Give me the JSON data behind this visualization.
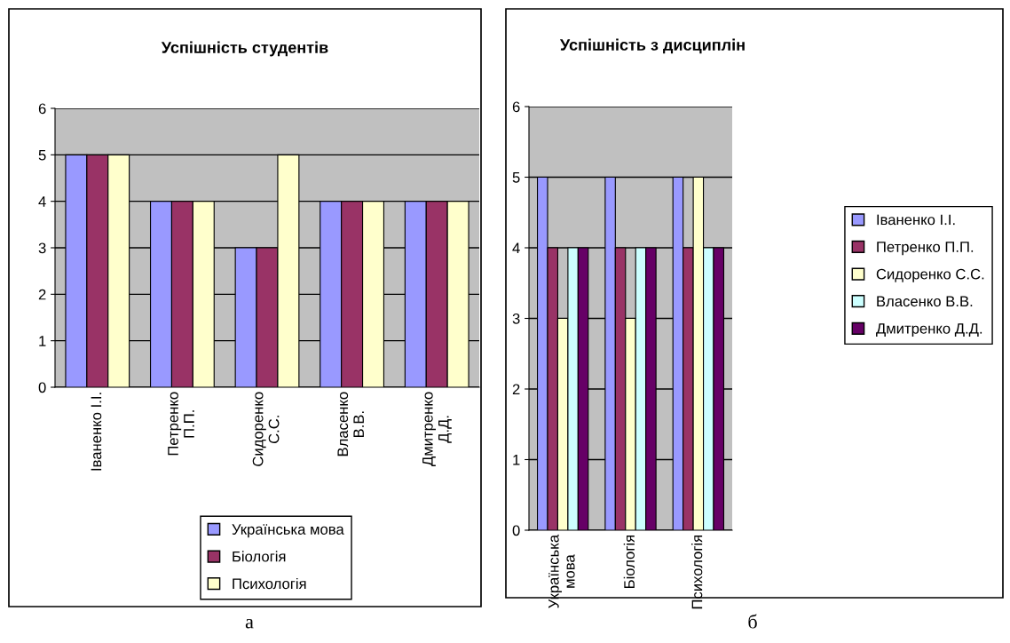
{
  "chart_data": [
    {
      "type": "bar",
      "title": "Успішність студентів",
      "categories": [
        "Іваненко І.І.",
        "Петренко\nП.П.",
        "Сидоренко\nС.С.",
        "Власенко\nВ.В.",
        "Дмитренко\nД.Д."
      ],
      "series": [
        {
          "name": "Українська мова",
          "color": "#9999ff",
          "values": [
            5,
            4,
            3,
            4,
            4
          ]
        },
        {
          "name": "Біологія",
          "color": "#993366",
          "values": [
            5,
            4,
            3,
            4,
            4
          ]
        },
        {
          "name": "Психологія",
          "color": "#ffffcc",
          "values": [
            5,
            4,
            5,
            4,
            4
          ]
        }
      ],
      "ylim": [
        0,
        6
      ],
      "yticks": [
        0,
        1,
        2,
        3,
        4,
        5,
        6
      ],
      "grid": "y",
      "legend": "bottom",
      "annotations": [
        "а"
      ]
    },
    {
      "type": "bar",
      "title": "Успішність з дисциплін",
      "categories": [
        "Українська\nмова",
        "Біологія",
        "Психологія"
      ],
      "series": [
        {
          "name": "Іваненко І.І.",
          "color": "#9999ff",
          "values": [
            5,
            5,
            5
          ]
        },
        {
          "name": "Петренко П.П.",
          "color": "#993366",
          "values": [
            4,
            4,
            4
          ]
        },
        {
          "name": "Сидоренко С.С.",
          "color": "#ffffcc",
          "values": [
            3,
            3,
            5
          ]
        },
        {
          "name": "Власенко В.В.",
          "color": "#ccffff",
          "values": [
            4,
            4,
            4
          ]
        },
        {
          "name": "Дмитренко Д.Д.",
          "color": "#660066",
          "values": [
            4,
            4,
            4
          ]
        }
      ],
      "ylim": [
        0,
        6
      ],
      "yticks": [
        0,
        1,
        2,
        3,
        4,
        5,
        6
      ],
      "grid": "y",
      "legend": "right",
      "annotations": [
        "б"
      ]
    }
  ]
}
